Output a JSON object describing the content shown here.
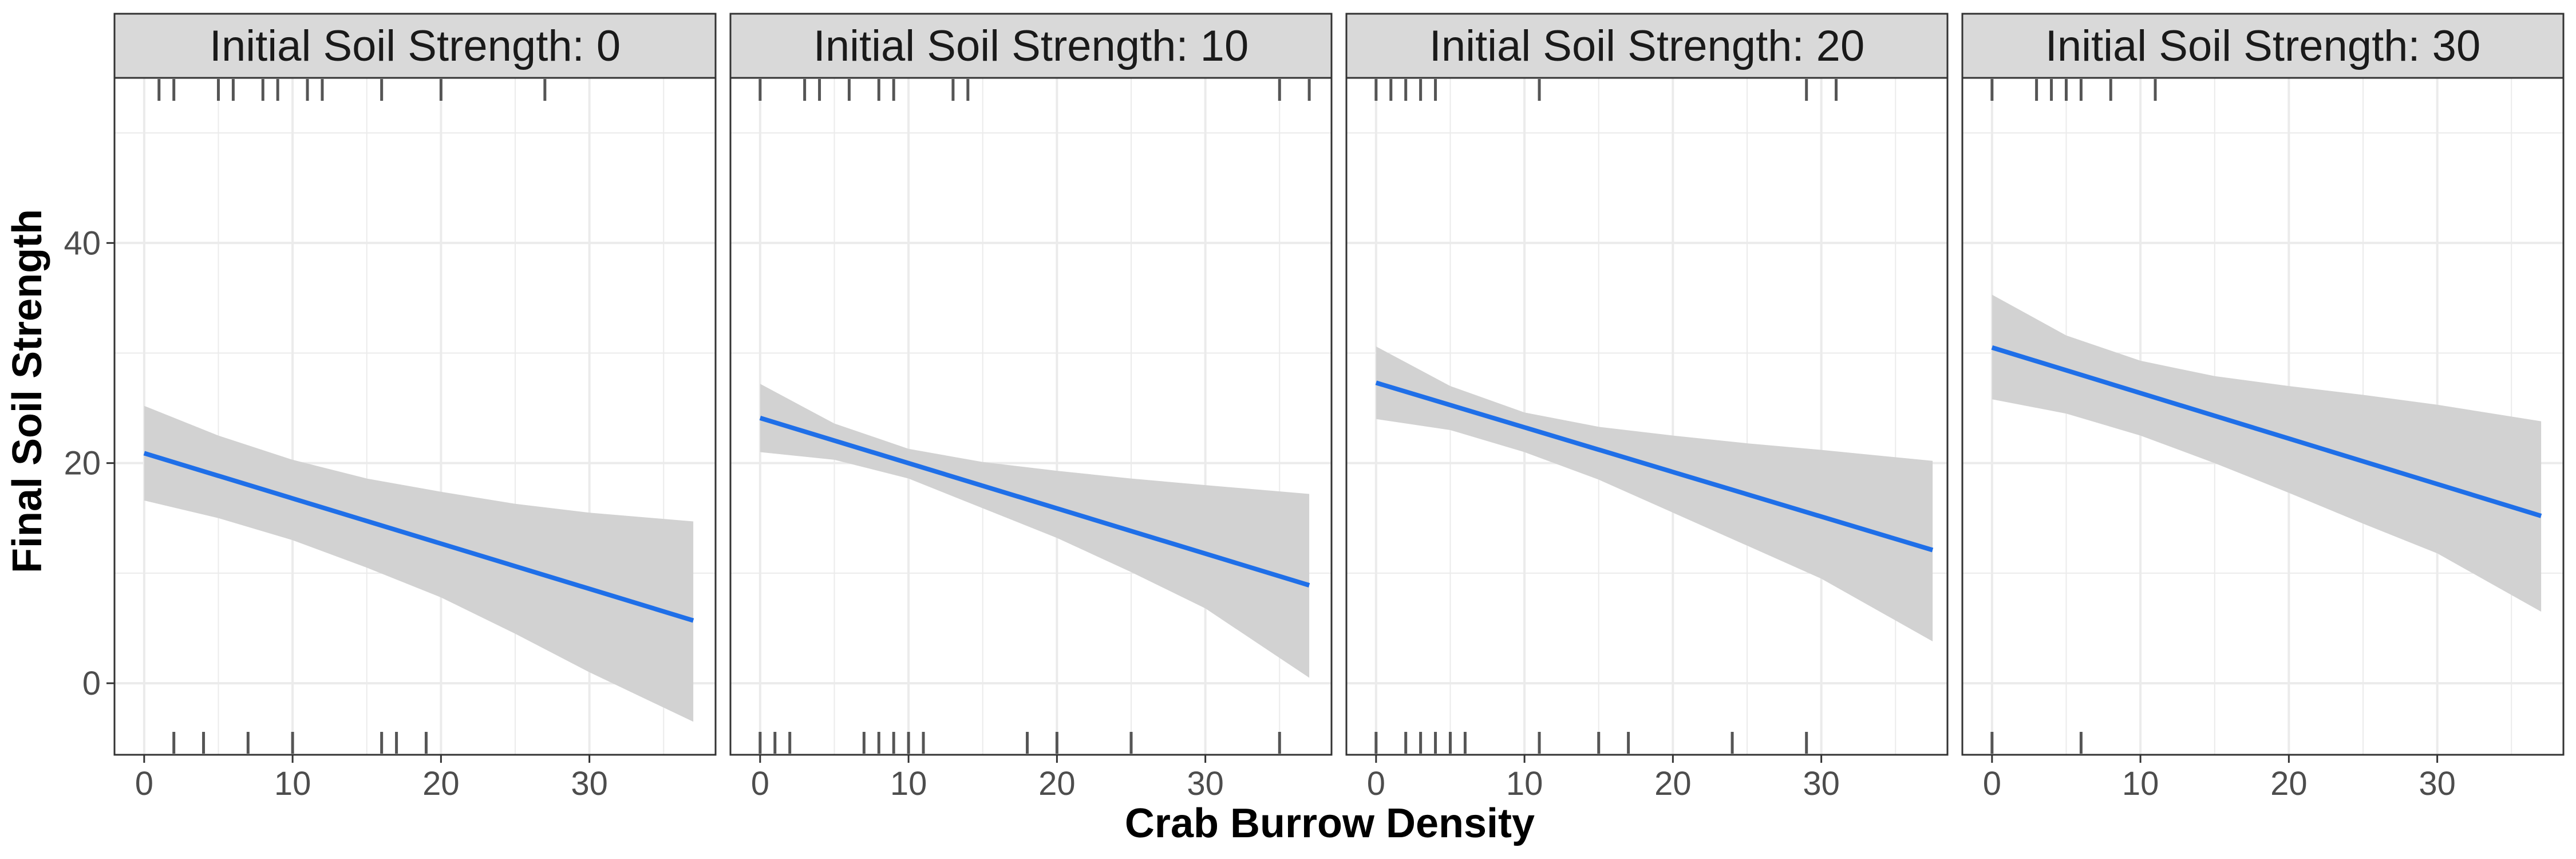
{
  "chart_data": {
    "type": "line",
    "xlabel": "Crab Burrow Density",
    "ylabel": "Final Soil Strength",
    "xlim": [
      -2,
      38.5
    ],
    "ylim": [
      -6.5,
      55
    ],
    "x_ticks": [
      0,
      10,
      20,
      30
    ],
    "y_ticks": [
      0,
      20,
      40
    ],
    "x_minor_ticks": [
      5,
      15,
      25,
      35
    ],
    "y_minor_ticks": [
      10,
      30,
      50
    ],
    "grid": true,
    "colors": {
      "line": "#1f6fe8",
      "ribbon": "#d2d2d2",
      "rug": "#555555",
      "strip_bg": "#d9d9d9",
      "grid": "#ebebeb"
    },
    "panels": [
      {
        "title": "Initial Soil Strength: 0",
        "line": {
          "x": [
            0,
            37
          ],
          "y": [
            20.9,
            5.7
          ]
        },
        "ribbon": {
          "x": [
            0,
            5,
            10,
            15,
            20,
            25,
            30,
            37
          ],
          "lower": [
            16.6,
            15.0,
            13.0,
            10.5,
            7.8,
            4.5,
            1.0,
            -3.5
          ],
          "upper": [
            25.2,
            22.5,
            20.3,
            18.6,
            17.4,
            16.3,
            15.5,
            14.7
          ]
        },
        "rug_x": [
          1,
          2,
          5,
          6,
          8,
          9,
          11,
          12,
          16,
          20,
          27
        ],
        "rug_y": [
          2,
          4,
          7,
          10,
          16,
          17,
          19
        ]
      },
      {
        "title": "Initial Soil Strength: 10",
        "line": {
          "x": [
            0,
            37
          ],
          "y": [
            24.1,
            8.9
          ]
        },
        "ribbon": {
          "x": [
            0,
            5,
            10,
            15,
            20,
            25,
            30,
            37
          ],
          "lower": [
            21.0,
            20.3,
            18.6,
            15.9,
            13.2,
            10.1,
            6.8,
            0.5
          ],
          "upper": [
            27.2,
            23.6,
            21.3,
            20.1,
            19.3,
            18.6,
            18.0,
            17.2
          ]
        },
        "rug_x": [
          0,
          3,
          4,
          6,
          8,
          9,
          13,
          14,
          35,
          37
        ],
        "rug_y": [
          0,
          1,
          2,
          7,
          8,
          9,
          10,
          11,
          18,
          20,
          25,
          35
        ]
      },
      {
        "title": "Initial Soil Strength: 20",
        "line": {
          "x": [
            0,
            37.5
          ],
          "y": [
            27.3,
            12.1
          ]
        },
        "ribbon": {
          "x": [
            0,
            5,
            10,
            15,
            20,
            25,
            30,
            37.5
          ],
          "lower": [
            24.0,
            23.0,
            21.0,
            18.5,
            15.5,
            12.5,
            9.5,
            3.8
          ],
          "upper": [
            30.6,
            27.0,
            24.6,
            23.3,
            22.5,
            21.8,
            21.2,
            20.2
          ]
        },
        "rug_x": [
          0,
          1,
          2,
          3,
          4,
          11,
          29,
          31
        ],
        "rug_y": [
          0,
          2,
          3,
          4,
          5,
          6,
          11,
          15,
          17,
          24,
          29
        ]
      },
      {
        "title": "Initial Soil Strength: 30",
        "line": {
          "x": [
            0,
            37
          ],
          "y": [
            30.5,
            15.2
          ]
        },
        "ribbon": {
          "x": [
            0,
            5,
            10,
            15,
            20,
            25,
            30,
            37
          ],
          "lower": [
            25.8,
            24.5,
            22.5,
            20.0,
            17.3,
            14.5,
            11.8,
            6.5
          ],
          "upper": [
            35.3,
            31.6,
            29.3,
            27.9,
            27.0,
            26.2,
            25.3,
            23.8
          ]
        },
        "rug_x": [
          0,
          3,
          4,
          5,
          6,
          8,
          11
        ],
        "rug_y": [
          0,
          6
        ]
      }
    ]
  }
}
